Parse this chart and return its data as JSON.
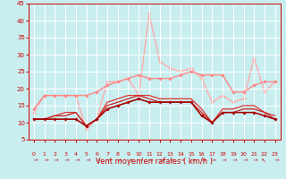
{
  "x": [
    0,
    1,
    2,
    3,
    4,
    5,
    6,
    7,
    8,
    9,
    10,
    11,
    12,
    13,
    14,
    15,
    16,
    17,
    18,
    19,
    20,
    21,
    22,
    23
  ],
  "series": [
    {
      "y": [
        11,
        11,
        11,
        11,
        11,
        9,
        11,
        14,
        15,
        16,
        17,
        16,
        16,
        16,
        16,
        16,
        12,
        10,
        13,
        13,
        13,
        13,
        12,
        11
      ],
      "color": "#aa0000",
      "lw": 1.0,
      "marker": "D",
      "ms": 1.8,
      "zorder": 6
    },
    {
      "y": [
        11,
        11,
        11,
        11,
        11,
        9,
        11,
        14,
        15,
        16,
        17,
        16,
        16,
        16,
        16,
        16,
        12,
        10,
        13,
        13,
        13,
        13,
        12,
        11
      ],
      "color": "#880000",
      "lw": 0.8,
      "marker": null,
      "ms": 0,
      "zorder": 5
    },
    {
      "y": [
        11,
        11,
        12,
        12,
        13,
        9,
        11,
        15,
        16,
        17,
        18,
        17,
        16,
        16,
        16,
        16,
        13,
        10,
        13,
        13,
        14,
        14,
        13,
        11
      ],
      "color": "#cc2222",
      "lw": 0.9,
      "marker": null,
      "ms": 0,
      "zorder": 4
    },
    {
      "y": [
        11,
        11,
        12,
        13,
        13,
        9,
        11,
        16,
        17,
        18,
        18,
        18,
        17,
        17,
        17,
        17,
        14,
        10,
        14,
        14,
        15,
        15,
        13,
        12
      ],
      "color": "#dd3333",
      "lw": 0.9,
      "marker": null,
      "ms": 0,
      "zorder": 3
    },
    {
      "y": [
        14,
        18,
        18,
        18,
        18,
        18,
        19,
        21,
        22,
        23,
        24,
        23,
        23,
        23,
        24,
        25,
        24,
        24,
        24,
        19,
        19,
        21,
        22,
        22
      ],
      "color": "#ff8888",
      "lw": 1.0,
      "marker": "D",
      "ms": 1.8,
      "zorder": 2
    },
    {
      "y": [
        13,
        18,
        18,
        18,
        18,
        8,
        11,
        22,
        22,
        23,
        18,
        42,
        28,
        26,
        25,
        26,
        23,
        16,
        18,
        16,
        17,
        29,
        19,
        22
      ],
      "color": "#ffaaaa",
      "lw": 1.0,
      "marker": "D",
      "ms": 1.8,
      "zorder": 1
    }
  ],
  "xlabel": "Vent moyen/en rafales ( km/h )",
  "xlim": [
    -0.5,
    23.5
  ],
  "ylim": [
    5,
    45
  ],
  "yticks": [
    5,
    10,
    15,
    20,
    25,
    30,
    35,
    40,
    45
  ],
  "xticks": [
    0,
    1,
    2,
    3,
    4,
    5,
    6,
    7,
    8,
    9,
    10,
    11,
    12,
    13,
    14,
    15,
    16,
    17,
    18,
    19,
    20,
    21,
    22,
    23
  ],
  "bg_color": "#c8eef0",
  "grid_color": "#ffffff",
  "axis_color": "#cc0000",
  "xlabel_color": "#cc0000",
  "tick_fontsize_x": 4.5,
  "tick_fontsize_y": 5.0,
  "xlabel_fontsize": 6.0
}
